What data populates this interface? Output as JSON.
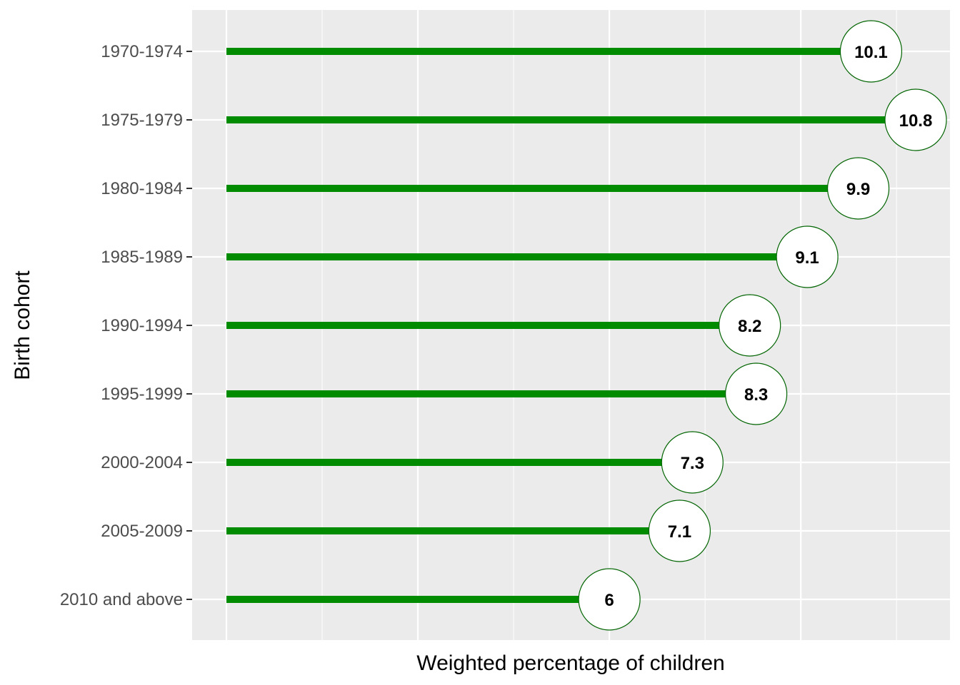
{
  "chart_data": {
    "type": "lollipop",
    "title": "",
    "xlabel": "Weighted percentage of children",
    "ylabel": "Birth cohort",
    "xlim": [
      0,
      11.2
    ],
    "grid": true,
    "categories": [
      "1970-1974",
      "1975-1979",
      "1980-1984",
      "1985-1989",
      "1990-1994",
      "1995-1999",
      "2000-2004",
      "2005-2009",
      "2010 and above"
    ],
    "values": [
      10.1,
      10.8,
      9.9,
      9.1,
      8.2,
      8.3,
      7.3,
      7.1,
      6
    ],
    "data_labels": [
      "10.1",
      "10.8",
      "9.9",
      "9.1",
      "8.2",
      "8.3",
      "7.3",
      "7.1",
      "6"
    ],
    "colors": {
      "stem": "#008B00",
      "marker_border": "#006400",
      "marker_fill": "#ffffff",
      "panel": "#EBEBEB",
      "grid": "#ffffff"
    }
  }
}
